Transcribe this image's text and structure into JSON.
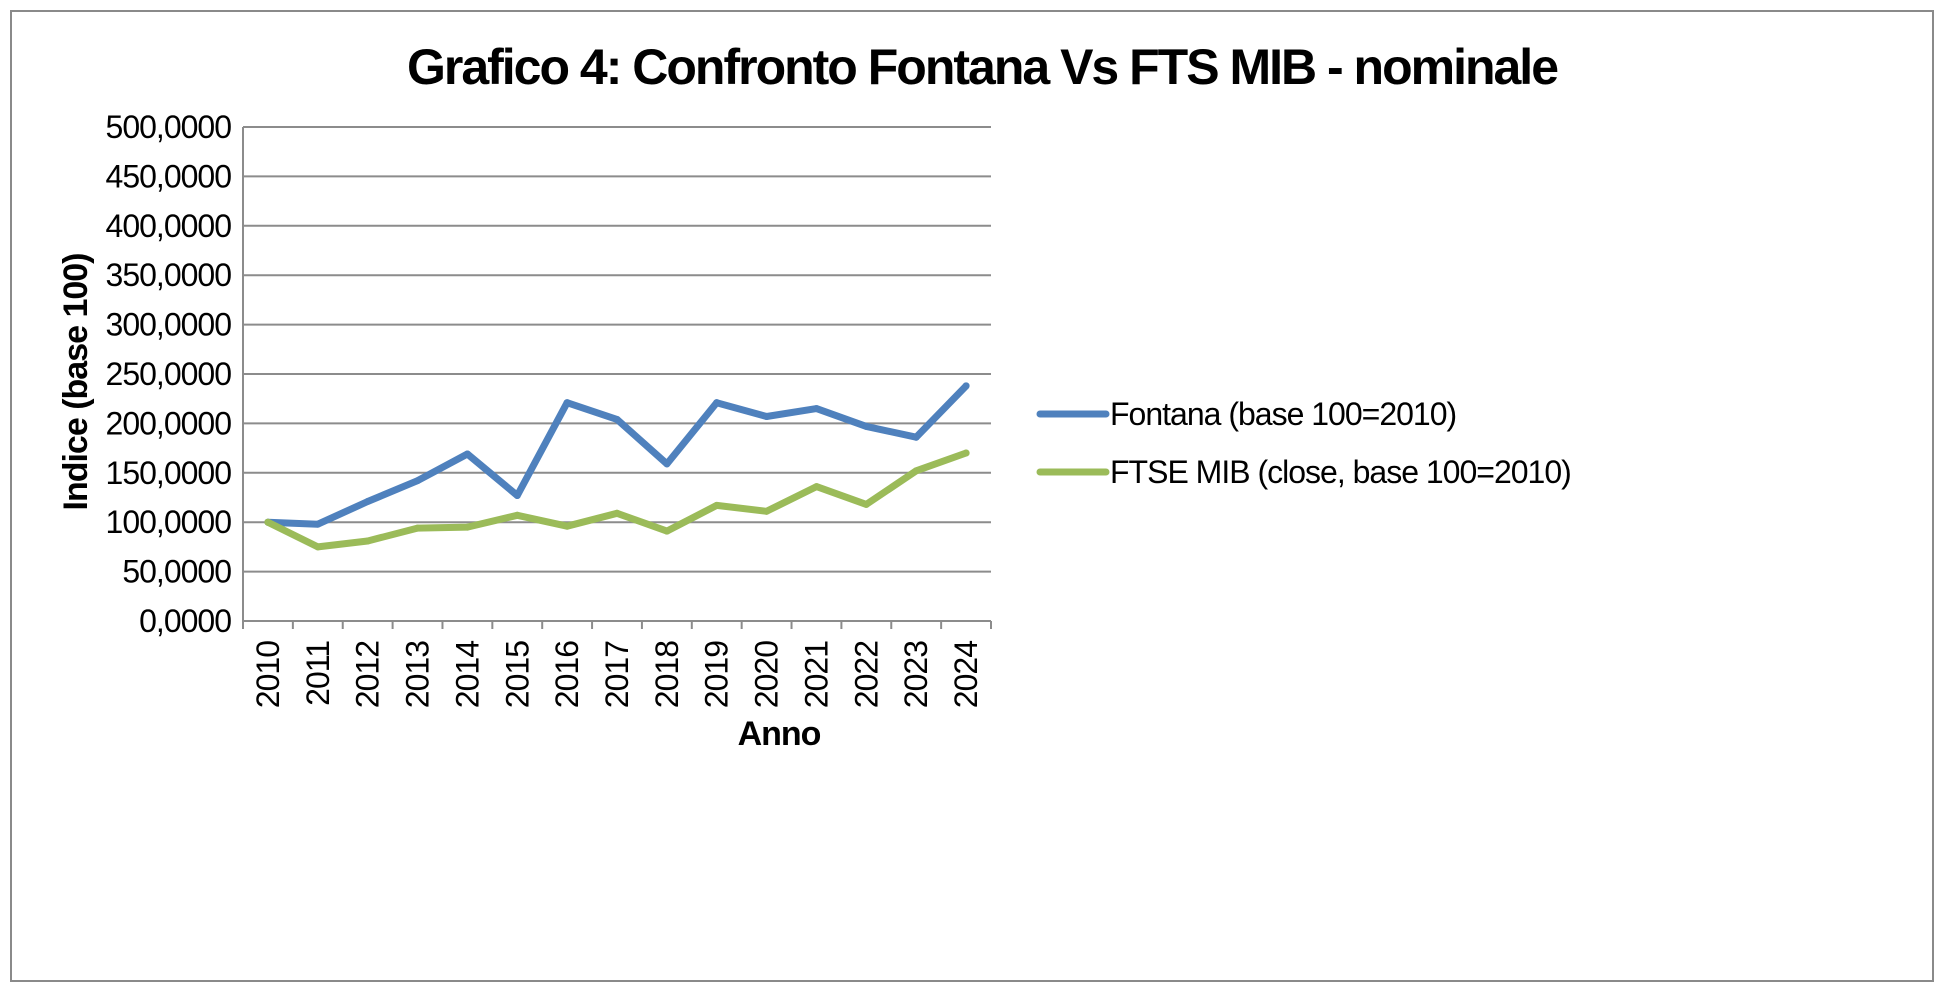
{
  "chart_data": {
    "type": "line",
    "title": "Grafico 4: Confronto Fontana Vs FTS MIB - nominale",
    "xlabel": "Anno",
    "ylabel": "Indice (base 100)",
    "categories": [
      "2010",
      "2011",
      "2012",
      "2013",
      "2014",
      "2015",
      "2016",
      "2017",
      "2018",
      "2019",
      "2020",
      "2021",
      "2022",
      "2023",
      "2024"
    ],
    "y_ticks": [
      "0,0000",
      "50,0000",
      "100,0000",
      "150,0000",
      "200,0000",
      "250,0000",
      "300,0000",
      "350,0000",
      "400,0000",
      "450,0000",
      "500,0000"
    ],
    "ylim": [
      0,
      500
    ],
    "grid": true,
    "legend_position": "right",
    "series": [
      {
        "name": "Fontana (base 100=2010)",
        "color": "#4f81bd",
        "values": [
          100,
          98,
          121,
          142,
          169,
          127,
          221,
          204,
          159,
          221,
          207,
          215,
          197,
          186,
          238
        ]
      },
      {
        "name": "FTSE MIB (close, base 100=2010)",
        "color": "#9bbb59",
        "values": [
          100,
          75,
          81,
          94,
          95,
          107,
          96,
          109,
          91,
          117,
          111,
          136,
          118,
          152,
          170
        ]
      }
    ]
  }
}
